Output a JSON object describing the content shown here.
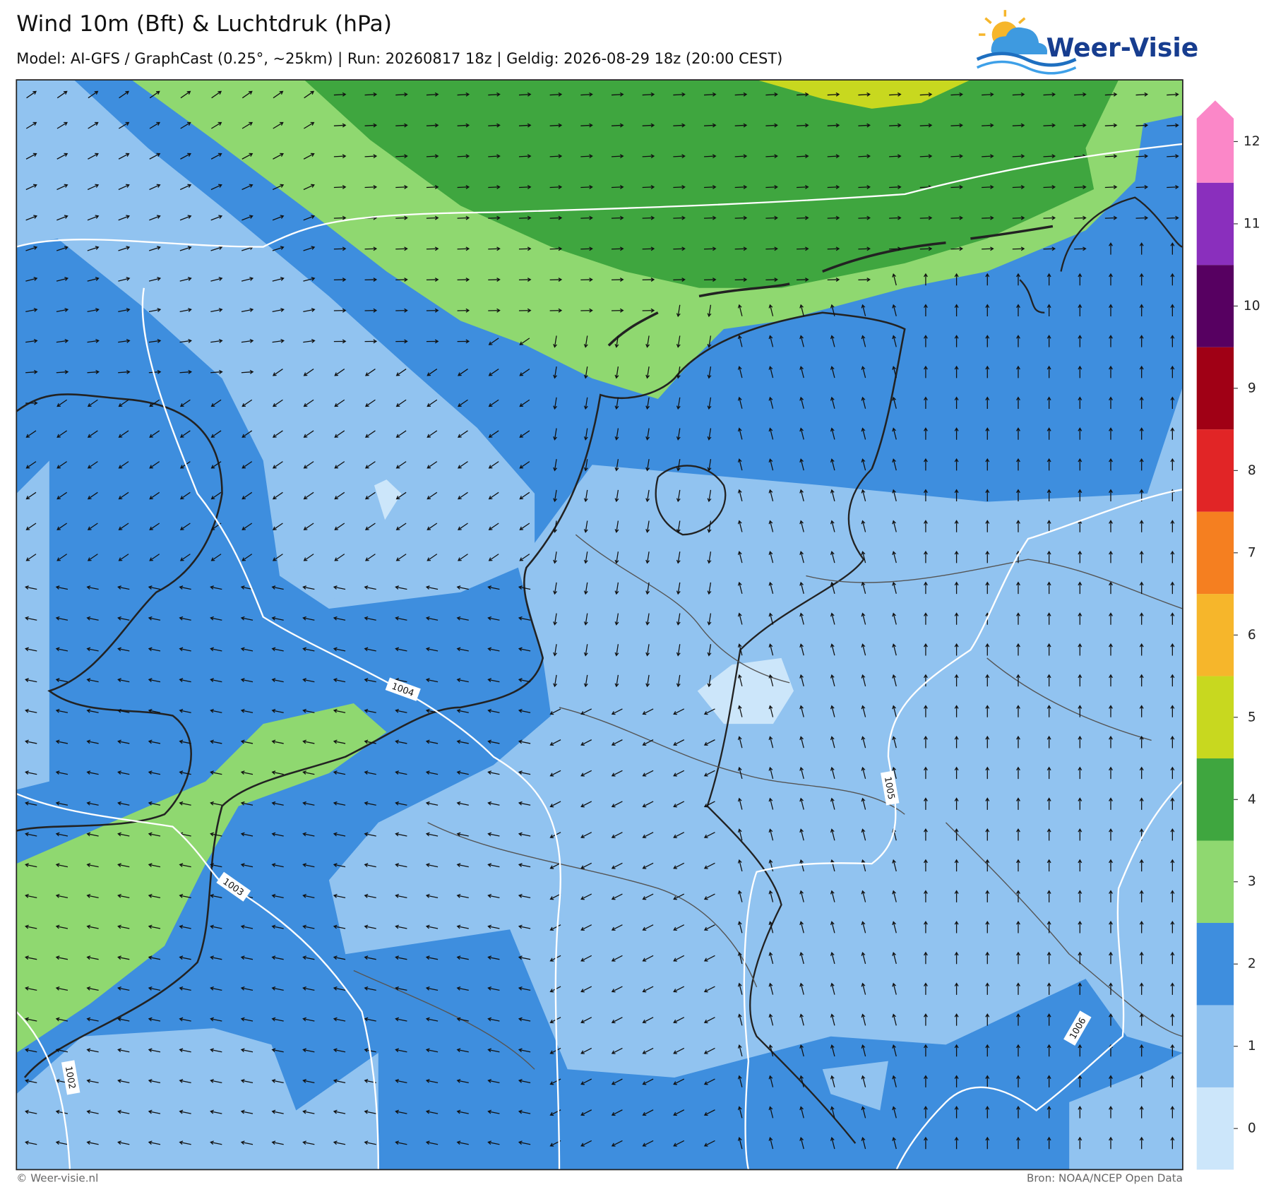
{
  "header": {
    "title": "Wind 10m (Bft) & Luchtdruk (hPa)",
    "subtitle": "Model: AI-GFS / GraphCast (0.25°, ~25km)  |  Run: 20260817 18z  |  Geldig: 2026-08-29 18z (20:00 CEST)"
  },
  "logo": {
    "text": "Weer-Visie"
  },
  "legend": {
    "ticks": [
      0,
      1,
      2,
      3,
      4,
      5,
      6,
      7,
      8,
      9,
      10,
      11,
      12
    ],
    "colors": [
      "#cce6fa",
      "#91c3f0",
      "#3e8ede",
      "#8fd870",
      "#3fa63f",
      "#c8d81f",
      "#f6b62b",
      "#f57f20",
      "#e12526",
      "#a00015",
      "#570061",
      "#8a2fbd",
      "#fb87c8"
    ]
  },
  "isobars": [
    {
      "label": 1002
    },
    {
      "label": 1003
    },
    {
      "label": 1004
    },
    {
      "label": 1005
    },
    {
      "label": 1006
    }
  ],
  "footer": {
    "left": "© Weer-visie.nl",
    "right": "Bron: NOAA/NCEP Open Data"
  }
}
